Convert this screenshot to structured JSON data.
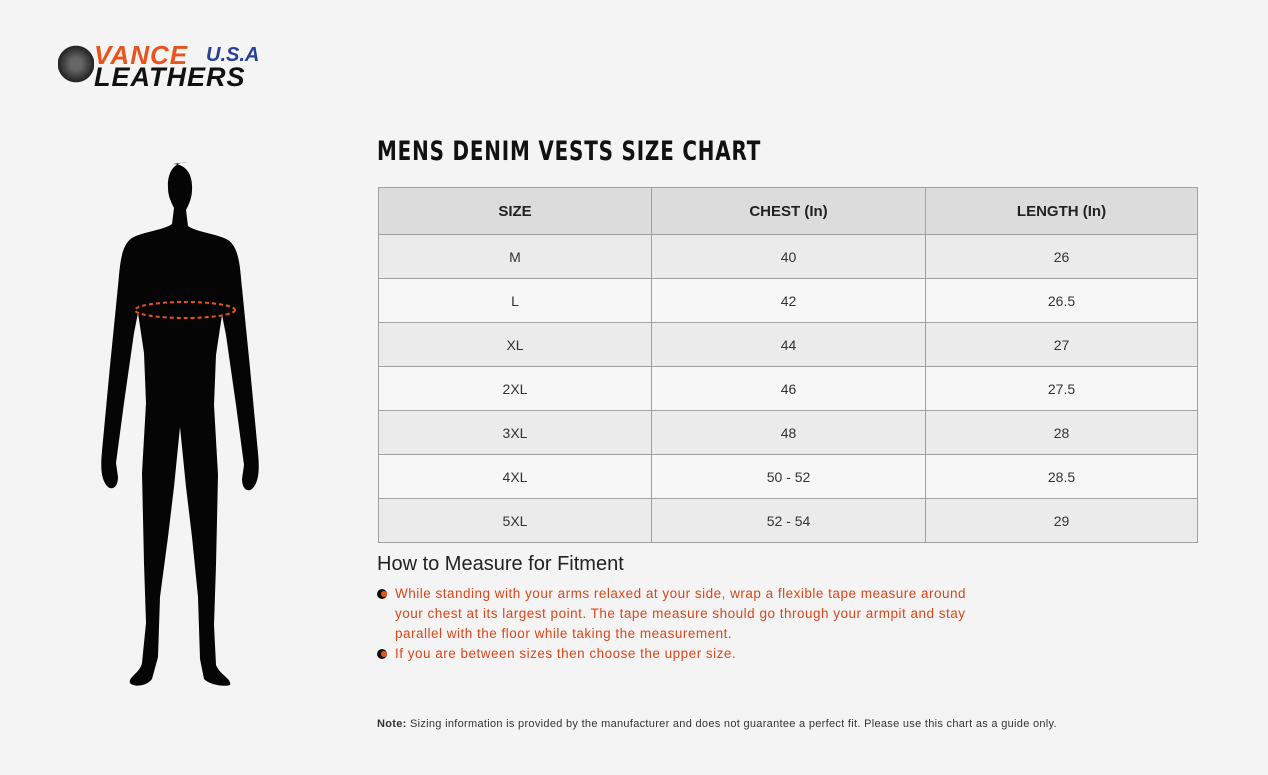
{
  "brand": {
    "line1": "VANCE",
    "usa": "U.S.A",
    "line2": "LEATHERS"
  },
  "title": "MENS DENIM VESTS SIZE CHART",
  "table": {
    "headers": [
      "SIZE",
      "CHEST (In)",
      "LENGTH (In)"
    ],
    "rows": [
      [
        "M",
        "40",
        "26"
      ],
      [
        "L",
        "42",
        "26.5"
      ],
      [
        "XL",
        "44",
        "27"
      ],
      [
        "2XL",
        "46",
        "27.5"
      ],
      [
        "3XL",
        "48",
        "28"
      ],
      [
        "4XL",
        "50 - 52",
        "28.5"
      ],
      [
        "5XL",
        "52 - 54",
        "29"
      ]
    ]
  },
  "measure": {
    "heading": "How to Measure for Fitment",
    "items": [
      "While standing with your arms relaxed at your side, wrap a flexible tape measure around your chest at its largest point. The tape measure should go through your armpit and stay parallel with the floor while taking the measurement.",
      "If you are between sizes then choose the upper size."
    ]
  },
  "note": {
    "label": "Note:",
    "text": "Sizing information is provided by the manufacturer and does not guarantee a perfect fit. Please use this chart as a guide only."
  },
  "colors": {
    "accent": "#e8541c",
    "text": "#222222"
  }
}
